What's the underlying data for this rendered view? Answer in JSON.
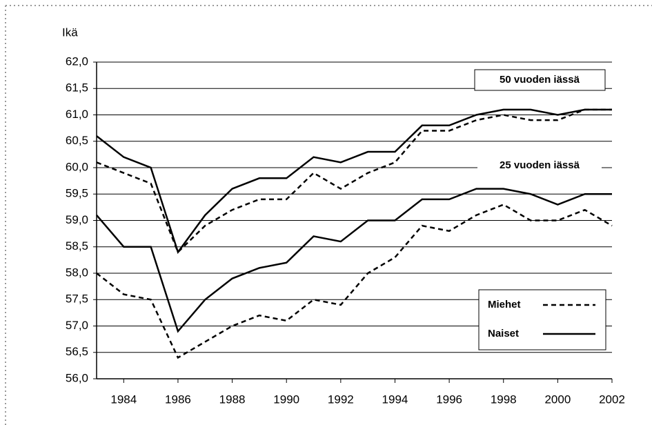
{
  "chart_data": {
    "type": "line",
    "y_label": "Ikä",
    "x": [
      1983,
      1984,
      1985,
      1986,
      1987,
      1988,
      1989,
      1990,
      1991,
      1992,
      1993,
      1994,
      1995,
      1996,
      1997,
      1998,
      1999,
      2000,
      2001,
      2002
    ],
    "xlim": [
      1983,
      2002
    ],
    "xticks": [
      1984,
      1986,
      1988,
      1990,
      1992,
      1994,
      1996,
      1998,
      2000,
      2002
    ],
    "ylim": [
      56,
      62
    ],
    "yticks": [
      {
        "value": 56,
        "label": "56,0"
      },
      {
        "value": 56.5,
        "label": "56,5"
      },
      {
        "value": 57,
        "label": "57,0"
      },
      {
        "value": 57.5,
        "label": "57,5"
      },
      {
        "value": 58,
        "label": "58,0"
      },
      {
        "value": 58.5,
        "label": "58,5"
      },
      {
        "value": 59,
        "label": "59,0"
      },
      {
        "value": 59.5,
        "label": "59,5"
      },
      {
        "value": 60,
        "label": "60,0"
      },
      {
        "value": 60.5,
        "label": "60,5"
      },
      {
        "value": 61,
        "label": "61,0"
      },
      {
        "value": 61.5,
        "label": "61,5"
      },
      {
        "value": 62,
        "label": "62,0"
      }
    ],
    "grid": true,
    "groups": [
      {
        "label": "50 vuoden  iässä",
        "series": [
          {
            "name": "Miehet",
            "style": "dashed",
            "color": "#000000",
            "values": [
              60.1,
              59.9,
              59.7,
              58.4,
              58.9,
              59.2,
              59.4,
              59.4,
              59.9,
              59.6,
              59.9,
              60.1,
              60.7,
              60.7,
              60.9,
              61.0,
              60.9,
              60.9,
              61.1,
              61.1
            ]
          },
          {
            "name": "Naiset",
            "style": "solid",
            "color": "#000000",
            "values": [
              60.6,
              60.2,
              60.0,
              58.4,
              59.1,
              59.6,
              59.8,
              59.8,
              60.2,
              60.1,
              60.3,
              60.3,
              60.8,
              60.8,
              61.0,
              61.1,
              61.1,
              61.0,
              61.1,
              61.1
            ]
          }
        ]
      },
      {
        "label": "25 vuoden iässä",
        "series": [
          {
            "name": "Miehet",
            "style": "dashed",
            "color": "#000000",
            "values": [
              58.0,
              57.6,
              57.5,
              56.4,
              56.7,
              57.0,
              57.2,
              57.1,
              57.5,
              57.4,
              58.0,
              58.3,
              58.9,
              58.8,
              59.1,
              59.3,
              59.0,
              59.0,
              59.2,
              58.9
            ]
          },
          {
            "name": "Naiset",
            "style": "solid",
            "color": "#000000",
            "values": [
              59.1,
              58.5,
              58.5,
              56.9,
              57.5,
              57.9,
              58.1,
              58.2,
              58.7,
              58.6,
              59.0,
              59.0,
              59.4,
              59.4,
              59.6,
              59.6,
              59.5,
              59.3,
              59.5,
              59.5
            ]
          }
        ]
      }
    ]
  }
}
